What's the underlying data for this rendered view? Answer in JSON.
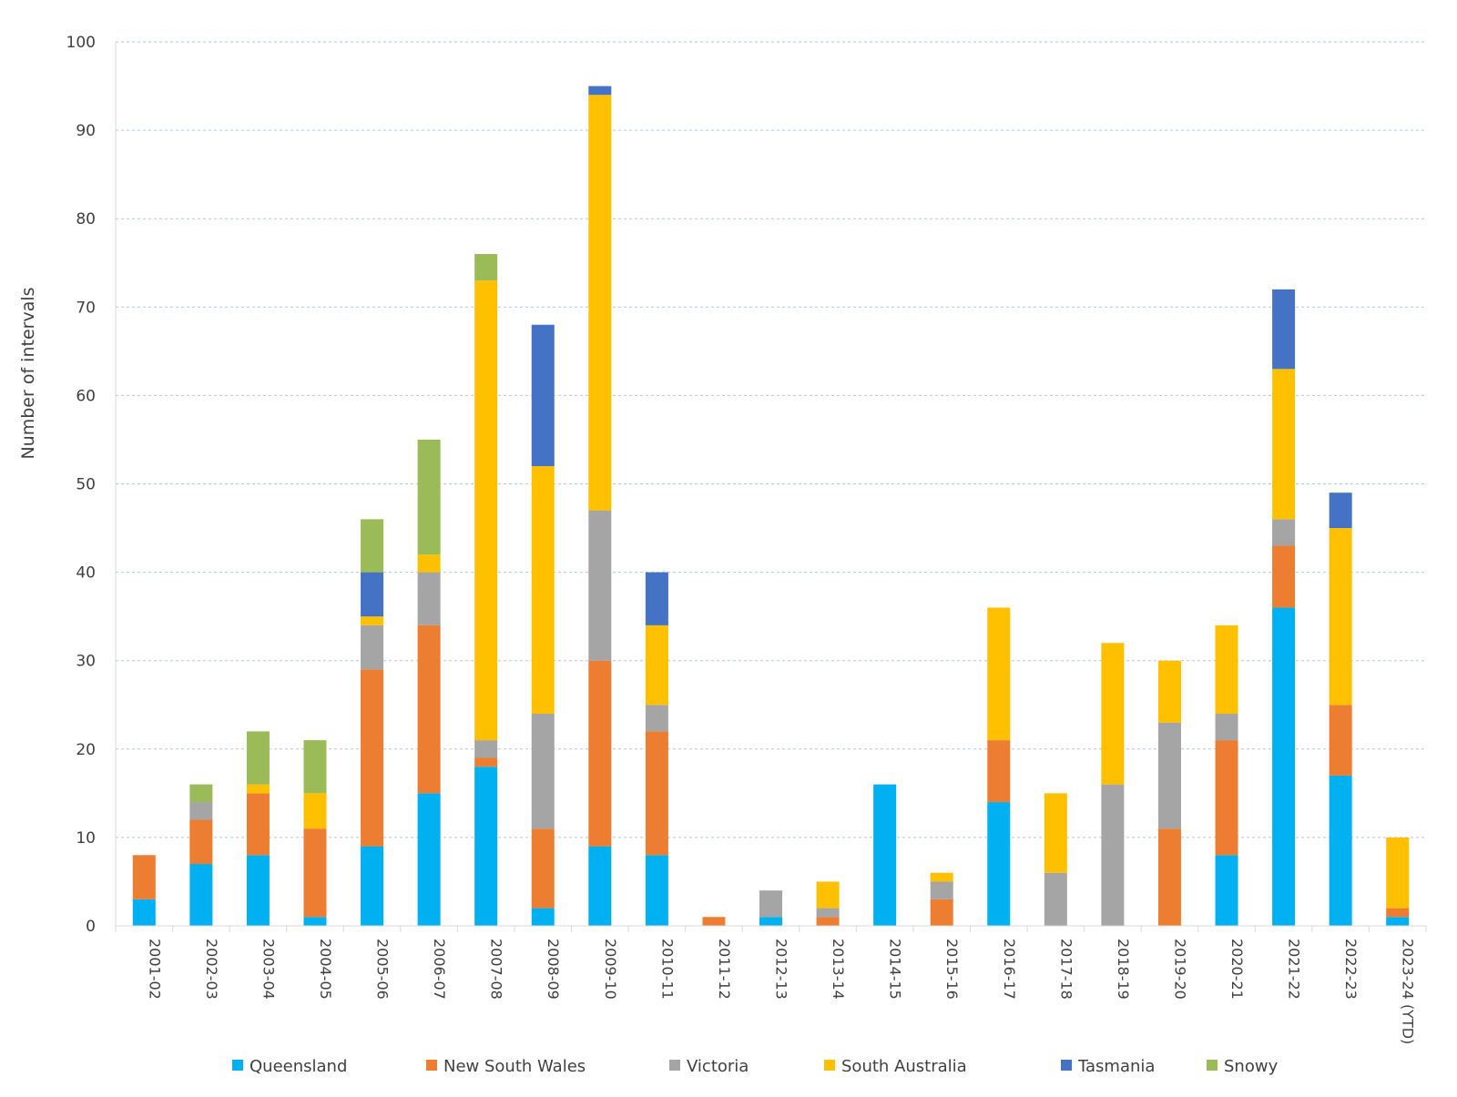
{
  "chart_data": {
    "type": "bar",
    "stacked": true,
    "title": "",
    "xlabel": "",
    "ylabel": "Number of intervals",
    "ylim": [
      0,
      100
    ],
    "yticks": [
      0,
      10,
      20,
      30,
      40,
      50,
      60,
      70,
      80,
      90,
      100
    ],
    "grid": true,
    "legend": "bottom",
    "categories": [
      "2001-02",
      "2002-03",
      "2003-04",
      "2004-05",
      "2005-06",
      "2006-07",
      "2007-08",
      "2008-09",
      "2009-10",
      "2010-11",
      "2011-12",
      "2012-13",
      "2013-14",
      "2014-15",
      "2015-16",
      "2016-17",
      "2017-18",
      "2018-19",
      "2019-20",
      "2020-21",
      "2021-22",
      "2022-23",
      "2023-24 (YTD)"
    ],
    "series": [
      {
        "name": "Queensland",
        "color": "#00B0F0",
        "values": [
          3,
          7,
          8,
          1,
          9,
          15,
          18,
          2,
          9,
          8,
          0,
          1,
          0,
          16,
          0,
          14,
          0,
          0,
          0,
          8,
          36,
          17,
          1
        ]
      },
      {
        "name": "New South Wales",
        "color": "#ED7D31",
        "values": [
          5,
          5,
          7,
          10,
          20,
          19,
          1,
          9,
          21,
          14,
          1,
          0,
          1,
          0,
          3,
          7,
          0,
          0,
          11,
          13,
          7,
          8,
          1
        ]
      },
      {
        "name": "Victoria",
        "color": "#A5A5A5",
        "values": [
          0,
          2,
          0,
          0,
          5,
          6,
          2,
          13,
          17,
          3,
          0,
          3,
          1,
          0,
          2,
          0,
          6,
          16,
          12,
          3,
          3,
          0,
          0
        ]
      },
      {
        "name": "South Australia",
        "color": "#FFC000",
        "values": [
          0,
          0,
          1,
          4,
          1,
          2,
          52,
          28,
          47,
          9,
          0,
          0,
          3,
          0,
          1,
          15,
          9,
          16,
          7,
          10,
          17,
          20,
          8
        ]
      },
      {
        "name": "Tasmania",
        "color": "#4472C4",
        "values": [
          0,
          0,
          0,
          0,
          5,
          0,
          0,
          16,
          1,
          6,
          0,
          0,
          0,
          0,
          0,
          0,
          0,
          0,
          0,
          0,
          9,
          4,
          0
        ]
      },
      {
        "name": "Snowy",
        "color": "#9BBB59",
        "values": [
          0,
          2,
          6,
          6,
          6,
          13,
          3,
          0,
          0,
          0,
          0,
          0,
          0,
          0,
          0,
          0,
          0,
          0,
          0,
          0,
          0,
          0,
          0
        ]
      }
    ]
  }
}
